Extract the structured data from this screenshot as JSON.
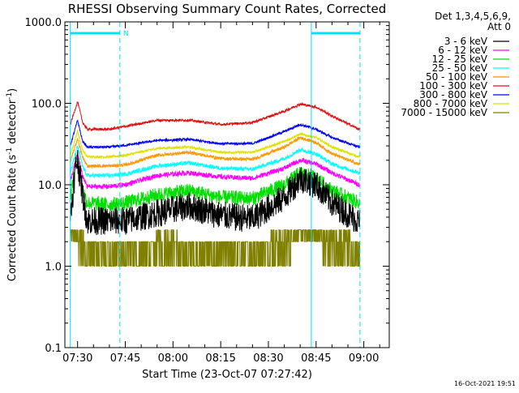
{
  "colors": {
    "axis": "#000000",
    "cyan": "#00e0ff",
    "bg": "#ffffff"
  },
  "chart_data": {
    "type": "line",
    "title": "RHESSI Observing Summary Count Rates, Corrected",
    "xlabel": "Start Time (23-Oct-07 07:27:42)",
    "ylabel": "Corrected Count Rate (s",
    "ylabel_sup1": "-1",
    "ylabel_mid": " detector",
    "ylabel_sup2": "-1",
    "ylabel_end": ")",
    "yscale": "log",
    "ylim": [
      0.1,
      1000
    ],
    "xlim_minutes": [
      -4,
      98
    ],
    "x_ticks": [
      {
        "m": 0,
        "label": "07:30"
      },
      {
        "m": 15,
        "label": "07:45"
      },
      {
        "m": 30,
        "label": "08:00"
      },
      {
        "m": 45,
        "label": "08:15"
      },
      {
        "m": 60,
        "label": "08:30"
      },
      {
        "m": 75,
        "label": "08:45"
      },
      {
        "m": 90,
        "label": "09:00"
      }
    ],
    "y_ticks": [
      {
        "v": 0.1,
        "label": "0.1"
      },
      {
        "v": 1,
        "label": "1.0"
      },
      {
        "v": 10,
        "label": "10.0"
      },
      {
        "v": 100,
        "label": "100.0"
      },
      {
        "v": 1000,
        "label": "1000.0"
      }
    ],
    "legend_header": [
      "Det 1,3,4,5,6,9,",
      "Att 0"
    ],
    "legend_placement": "right",
    "timestamp": "16-Oct-2021 19:51",
    "flag_label": "N",
    "vertical_lines_minutes": [
      -2.3,
      13.3,
      73.5,
      88.8
    ],
    "dashed_lines_minutes": [
      13.3,
      88.8
    ],
    "series": [
      {
        "name": "3 - 6 keV",
        "color": "#000000",
        "x": [
          -2.3,
          -0.5,
          0,
          1.5,
          3,
          10,
          15,
          25,
          35,
          45,
          55,
          65,
          70,
          75,
          80,
          88.5
        ],
        "y": [
          4,
          18,
          20,
          8,
          3.6,
          3.6,
          3.6,
          4.5,
          5.5,
          4.2,
          3.8,
          7,
          12,
          10,
          6,
          3.5
        ],
        "noise": 0.35
      },
      {
        "name": "6 - 12 keV",
        "color": "#ff00ff",
        "x": [
          -2.3,
          0,
          1.5,
          3,
          10,
          15,
          25,
          35,
          45,
          55,
          65,
          70,
          75,
          80,
          88.5
        ],
        "y": [
          11,
          24,
          13,
          9.5,
          9.5,
          10,
          13,
          14,
          12.5,
          12,
          16,
          20,
          18,
          14,
          10
        ],
        "noise": 0.06
      },
      {
        "name": "12 - 25 keV",
        "color": "#00e000",
        "x": [
          -2.3,
          0,
          1.5,
          3,
          10,
          15,
          25,
          35,
          45,
          55,
          65,
          70,
          75,
          80,
          88.5
        ],
        "y": [
          7,
          25,
          9,
          6,
          5.7,
          6,
          7.5,
          8.5,
          7,
          6.8,
          10,
          14,
          12,
          8.5,
          6
        ],
        "noise": 0.18
      },
      {
        "name": "25 - 50 keV",
        "color": "#00ffff",
        "x": [
          -2.3,
          0,
          1.5,
          3,
          10,
          15,
          25,
          35,
          45,
          55,
          65,
          70,
          75,
          80,
          88.5
        ],
        "y": [
          14,
          30,
          17,
          13,
          13,
          13.5,
          17,
          18.5,
          16,
          15.5,
          21,
          27,
          24,
          18,
          14
        ],
        "noise": 0.05
      },
      {
        "name": "50 - 100 keV",
        "color": "#ff9900",
        "x": [
          -2.3,
          0,
          1.5,
          3,
          10,
          15,
          25,
          35,
          45,
          55,
          65,
          70,
          75,
          80,
          88.5
        ],
        "y": [
          19,
          37,
          22,
          17,
          17,
          17.5,
          23,
          25,
          21,
          20.5,
          29,
          38,
          33,
          24,
          18
        ],
        "noise": 0.04
      },
      {
        "name": "100 - 300 keV",
        "color": "#e01010",
        "x": [
          -2.3,
          0,
          1.5,
          3,
          10,
          15,
          25,
          35,
          45,
          55,
          65,
          70,
          75,
          80,
          88.5
        ],
        "y": [
          55,
          105,
          60,
          48,
          48,
          52,
          62,
          62,
          55,
          58,
          80,
          98,
          90,
          70,
          48
        ],
        "noise": 0.03
      },
      {
        "name": "300 - 800 keV",
        "color": "#0000ff",
        "x": [
          -2.3,
          0,
          1.5,
          3,
          10,
          15,
          25,
          35,
          45,
          55,
          65,
          70,
          75,
          80,
          88.5
        ],
        "y": [
          30,
          62,
          35,
          29,
          29,
          30.5,
          35,
          36,
          32,
          32,
          45,
          55,
          48,
          38,
          29
        ],
        "noise": 0.03
      },
      {
        "name": "800 - 7000 keV",
        "color": "#dfdf00",
        "x": [
          -2.3,
          0,
          1.5,
          3,
          10,
          15,
          25,
          35,
          45,
          55,
          65,
          70,
          75,
          80,
          88.5
        ],
        "y": [
          23,
          46,
          27,
          22,
          22,
          23,
          28,
          29,
          25,
          25,
          34,
          42,
          38,
          29,
          22
        ],
        "noise": 0.03
      },
      {
        "name": "7000 - 15000 keV",
        "color": "#808000",
        "x": [
          -2.3,
          -0.5,
          3,
          10,
          15,
          24,
          26,
          30,
          32,
          45,
          60,
          62,
          66,
          70,
          74,
          78,
          80,
          88.5
        ],
        "y": [
          2.8,
          2.8,
          1,
          1,
          1,
          1,
          2,
          2,
          1,
          1,
          1,
          2,
          2,
          3,
          3,
          2,
          2,
          1
        ],
        "noise": 0.0,
        "steps": true
      }
    ]
  }
}
